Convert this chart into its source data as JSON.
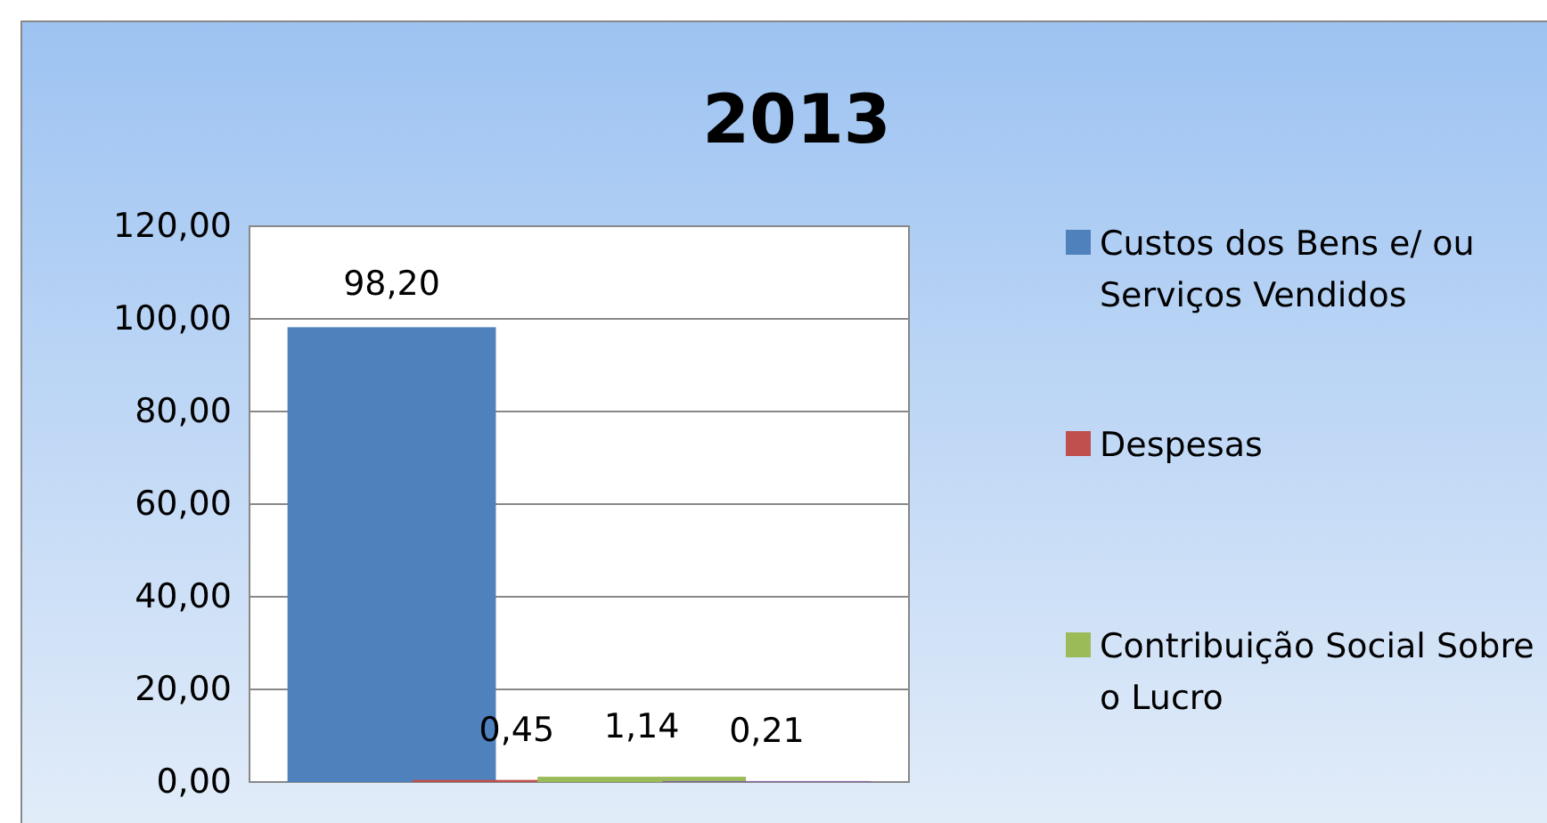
{
  "chart_data": {
    "type": "bar",
    "title": "2013",
    "categories": [
      null
    ],
    "series": [
      {
        "name": "Custos dos Bens e/ ou Serviços Vendidos",
        "color": "#4f81bd",
        "values": [
          98.2
        ],
        "value_labels": [
          "98,20"
        ]
      },
      {
        "name": "Despesas",
        "color": "#c0504d",
        "values": [
          0.45
        ],
        "value_labels": [
          "0,45"
        ]
      },
      {
        "name": "Contribuição Social Sobre o Lucro",
        "color": "#9bbb59",
        "values": [
          1.14
        ],
        "value_labels": [
          "1,14"
        ]
      },
      {
        "color": "#8064a2",
        "values": [
          0.21
        ],
        "value_labels": [
          "0,21"
        ]
      }
    ],
    "ylim": [
      0,
      120
    ],
    "yticks": [
      {
        "value": 0,
        "label": "0,00"
      },
      {
        "value": 20,
        "label": "20,00"
      },
      {
        "value": 40,
        "label": "40,00"
      },
      {
        "value": 60,
        "label": "60,00"
      },
      {
        "value": 80,
        "label": "80,00"
      },
      {
        "value": 100,
        "label": "100,00"
      },
      {
        "value": 120,
        "label": "120,00"
      }
    ],
    "grid": "y",
    "legend": "right"
  }
}
